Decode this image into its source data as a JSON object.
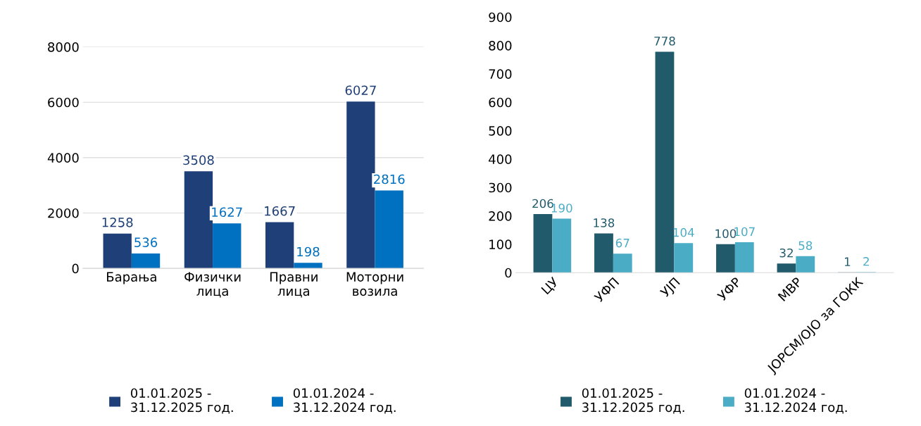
{
  "chart_data": [
    {
      "type": "bar",
      "categories": [
        "Барања",
        "Физички\nлица",
        "Правни\nлица",
        "Моторни\nвозила"
      ],
      "series": [
        {
          "name": "01.01.2025 -\n31.12.2025 год.",
          "color": "#1f3f78",
          "values": [
            1258,
            3508,
            1667,
            6027
          ]
        },
        {
          "name": "01.01.2024 -\n31.12.2024 год.",
          "color": "#0070c0",
          "values": [
            536,
            1627,
            198,
            2816
          ]
        }
      ],
      "ylim": [
        0,
        8000
      ],
      "yticks": [
        0,
        2000,
        4000,
        6000,
        8000
      ],
      "grid": "y",
      "legend": "bottom",
      "data_labels": true
    },
    {
      "type": "bar",
      "categories": [
        "ЦУ",
        "УФП",
        "УЈП",
        "УФР",
        "МВР",
        "ЈОРСМ/ОЈО за ГОКК"
      ],
      "series": [
        {
          "name": "01.01.2025 -\n31.12.2025 год.",
          "color": "#215a6b",
          "values": [
            206,
            138,
            778,
            100,
            32,
            1
          ]
        },
        {
          "name": "01.01.2024 -\n31.12.2024 год.",
          "color": "#4bacc6",
          "values": [
            190,
            67,
            104,
            107,
            58,
            2
          ]
        }
      ],
      "ylim": [
        0,
        900
      ],
      "yticks": [
        0,
        100,
        200,
        300,
        400,
        500,
        600,
        700,
        800,
        900
      ],
      "grid": false,
      "legend": "bottom",
      "data_labels": true
    }
  ]
}
